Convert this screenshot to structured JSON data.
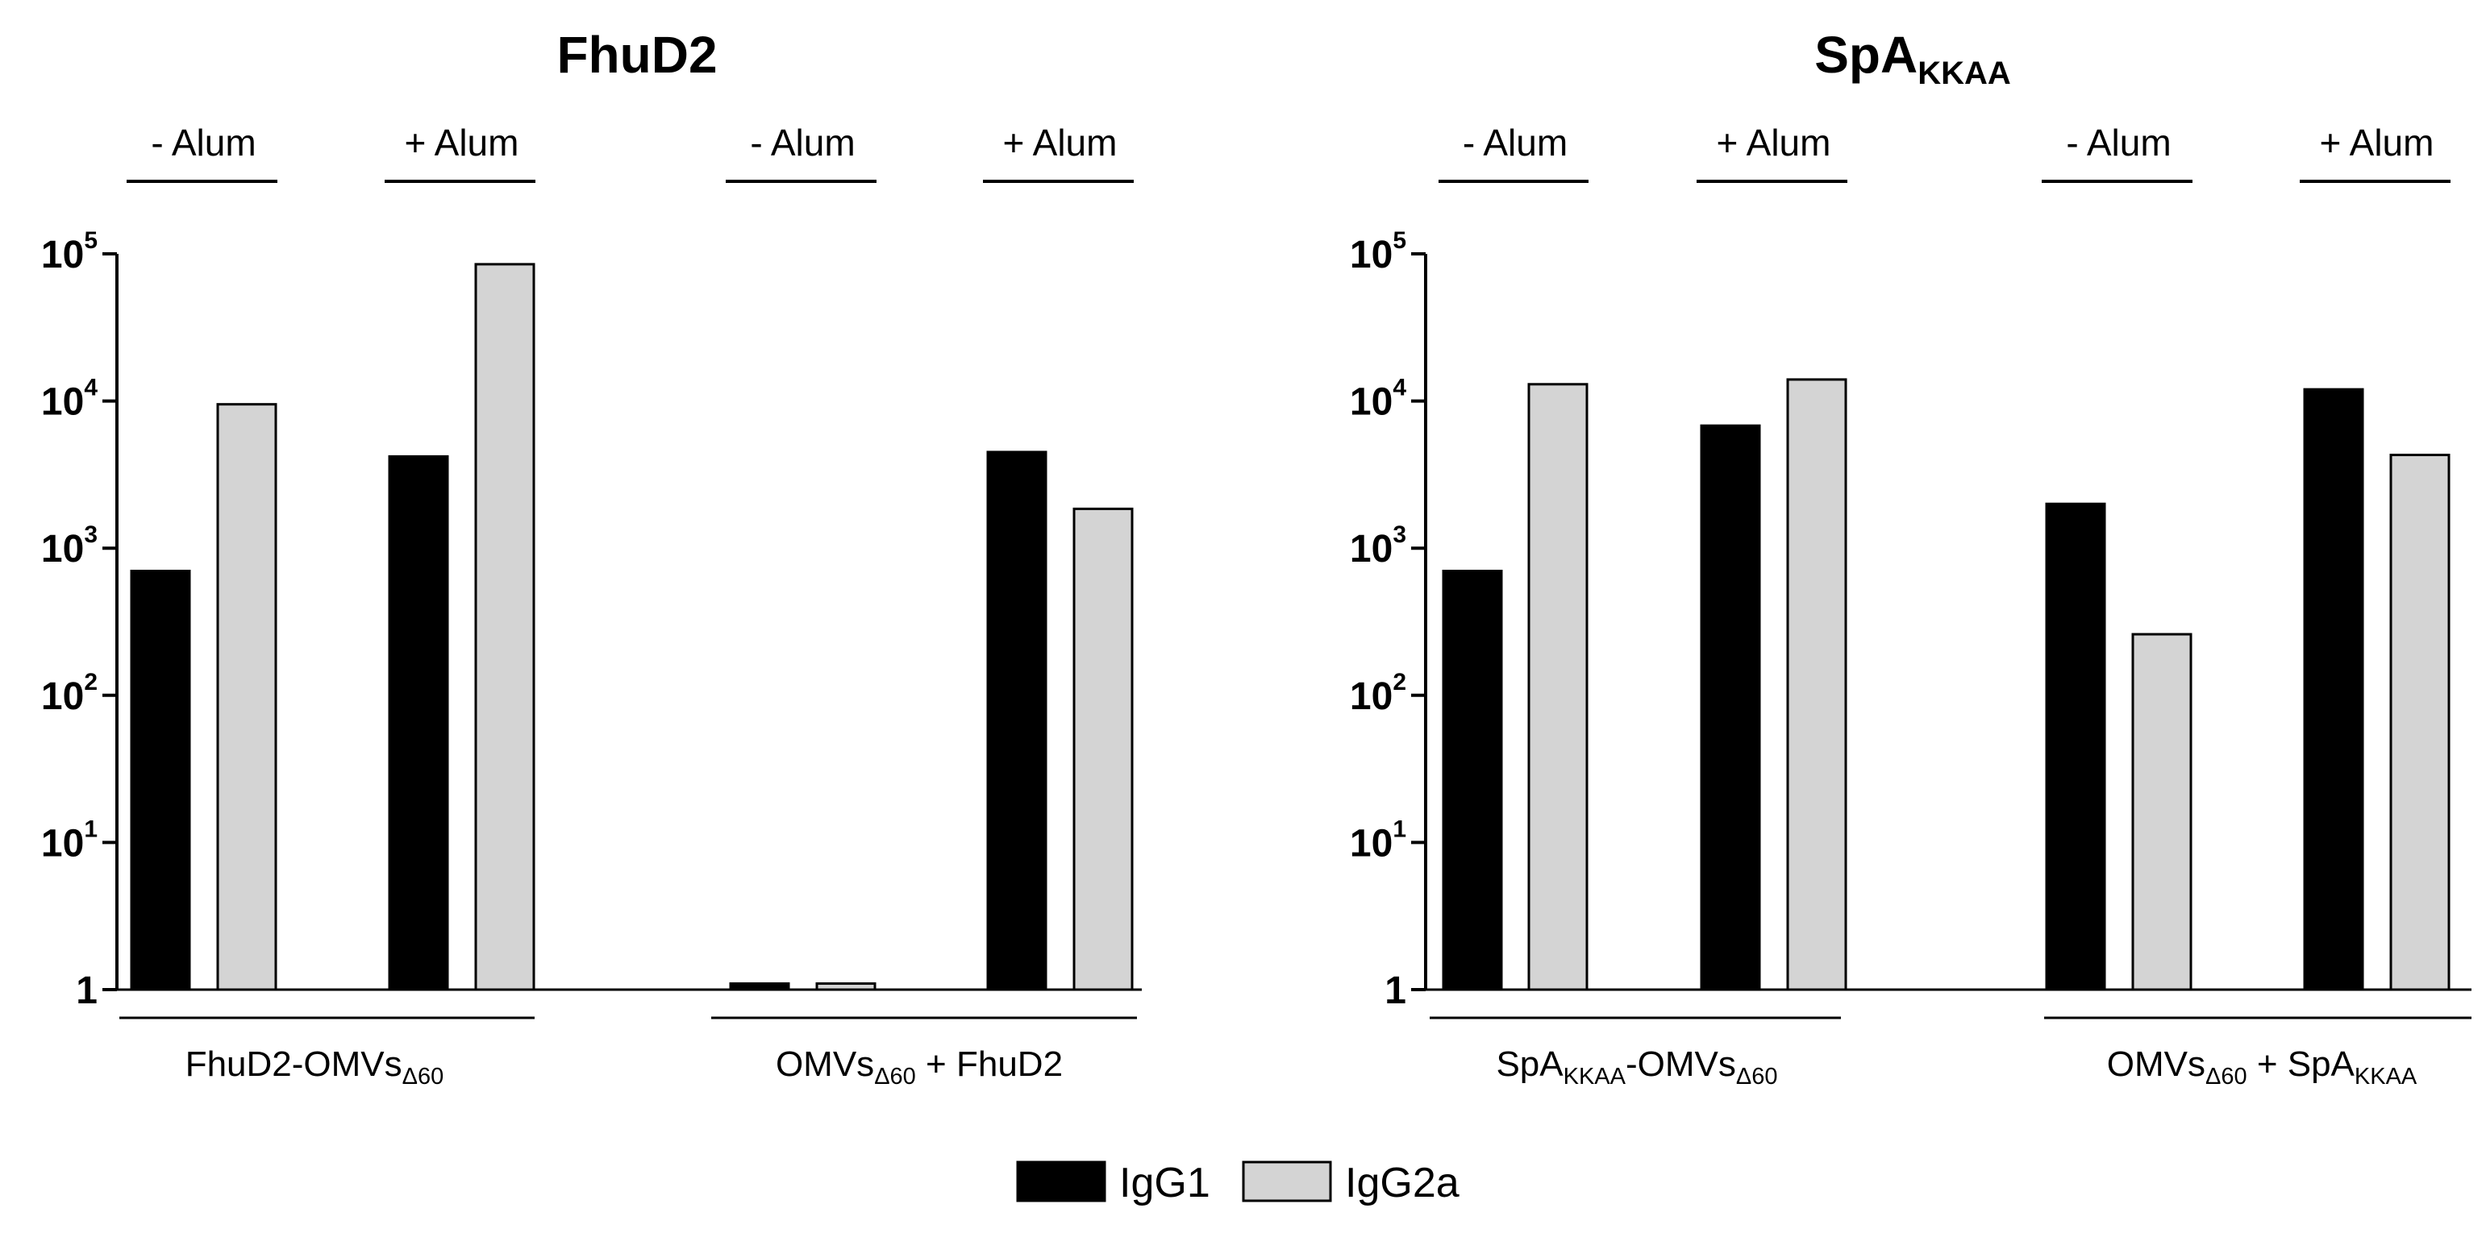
{
  "colors": {
    "IgG1": "#000000",
    "IgG2a": "#d4d4d4",
    "axis": "#000000",
    "bar_stroke": "#000000"
  },
  "legend": [
    {
      "series": "IgG1",
      "label": "IgG1"
    },
    {
      "series": "IgG2a",
      "label": "IgG2a"
    }
  ],
  "chart_data": [
    {
      "type": "bar",
      "title": "FhuD2",
      "title_sub": "",
      "yscale": "log",
      "ylim": [
        1,
        100000
      ],
      "yticks": [
        {
          "value": 1,
          "base": "1",
          "exp": ""
        },
        {
          "value": 10,
          "base": "10",
          "exp": "1"
        },
        {
          "value": 100,
          "base": "10",
          "exp": "2"
        },
        {
          "value": 1000,
          "base": "10",
          "exp": "3"
        },
        {
          "value": 10000,
          "base": "10",
          "exp": "4"
        },
        {
          "value": 100000,
          "base": "10",
          "exp": "5"
        }
      ],
      "groups": [
        {
          "label_main": "FhuD2-OMVs",
          "label_sub": "Δ60",
          "label_rest": ""
        },
        {
          "label_main": "OMVs",
          "label_sub": "Δ60",
          "label_rest": " + FhuD2"
        }
      ],
      "alum_labels": [
        "- Alum",
        "+ Alum",
        "- Alum",
        "+ Alum"
      ],
      "series": [
        {
          "name": "IgG1",
          "values": [
            700,
            4200,
            1.1,
            4500
          ]
        },
        {
          "name": "IgG2a",
          "values": [
            9500,
            85000,
            1.1,
            1850
          ]
        }
      ]
    },
    {
      "type": "bar",
      "title": "SpA",
      "title_sub": "KKAA",
      "yscale": "log",
      "ylim": [
        1,
        100000
      ],
      "yticks": [
        {
          "value": 1,
          "base": "1",
          "exp": ""
        },
        {
          "value": 10,
          "base": "10",
          "exp": "1"
        },
        {
          "value": 100,
          "base": "10",
          "exp": "2"
        },
        {
          "value": 1000,
          "base": "10",
          "exp": "3"
        },
        {
          "value": 10000,
          "base": "10",
          "exp": "4"
        },
        {
          "value": 100000,
          "base": "10",
          "exp": "5"
        }
      ],
      "groups": [
        {
          "label_main": "SpA",
          "label_sub": "KKAA",
          "label_rest": "-OMVs",
          "label_sub2": "Δ60"
        },
        {
          "label_main": "OMVs",
          "label_sub": "Δ60",
          "label_rest": " + SpA",
          "label_sub2": "KKAA"
        }
      ],
      "alum_labels": [
        "- Alum",
        "+ Alum",
        "- Alum",
        "+ Alum"
      ],
      "series": [
        {
          "name": "IgG1",
          "values": [
            700,
            6800,
            2000,
            12000
          ]
        },
        {
          "name": "IgG2a",
          "values": [
            13000,
            14000,
            260,
            4300
          ]
        }
      ]
    }
  ]
}
